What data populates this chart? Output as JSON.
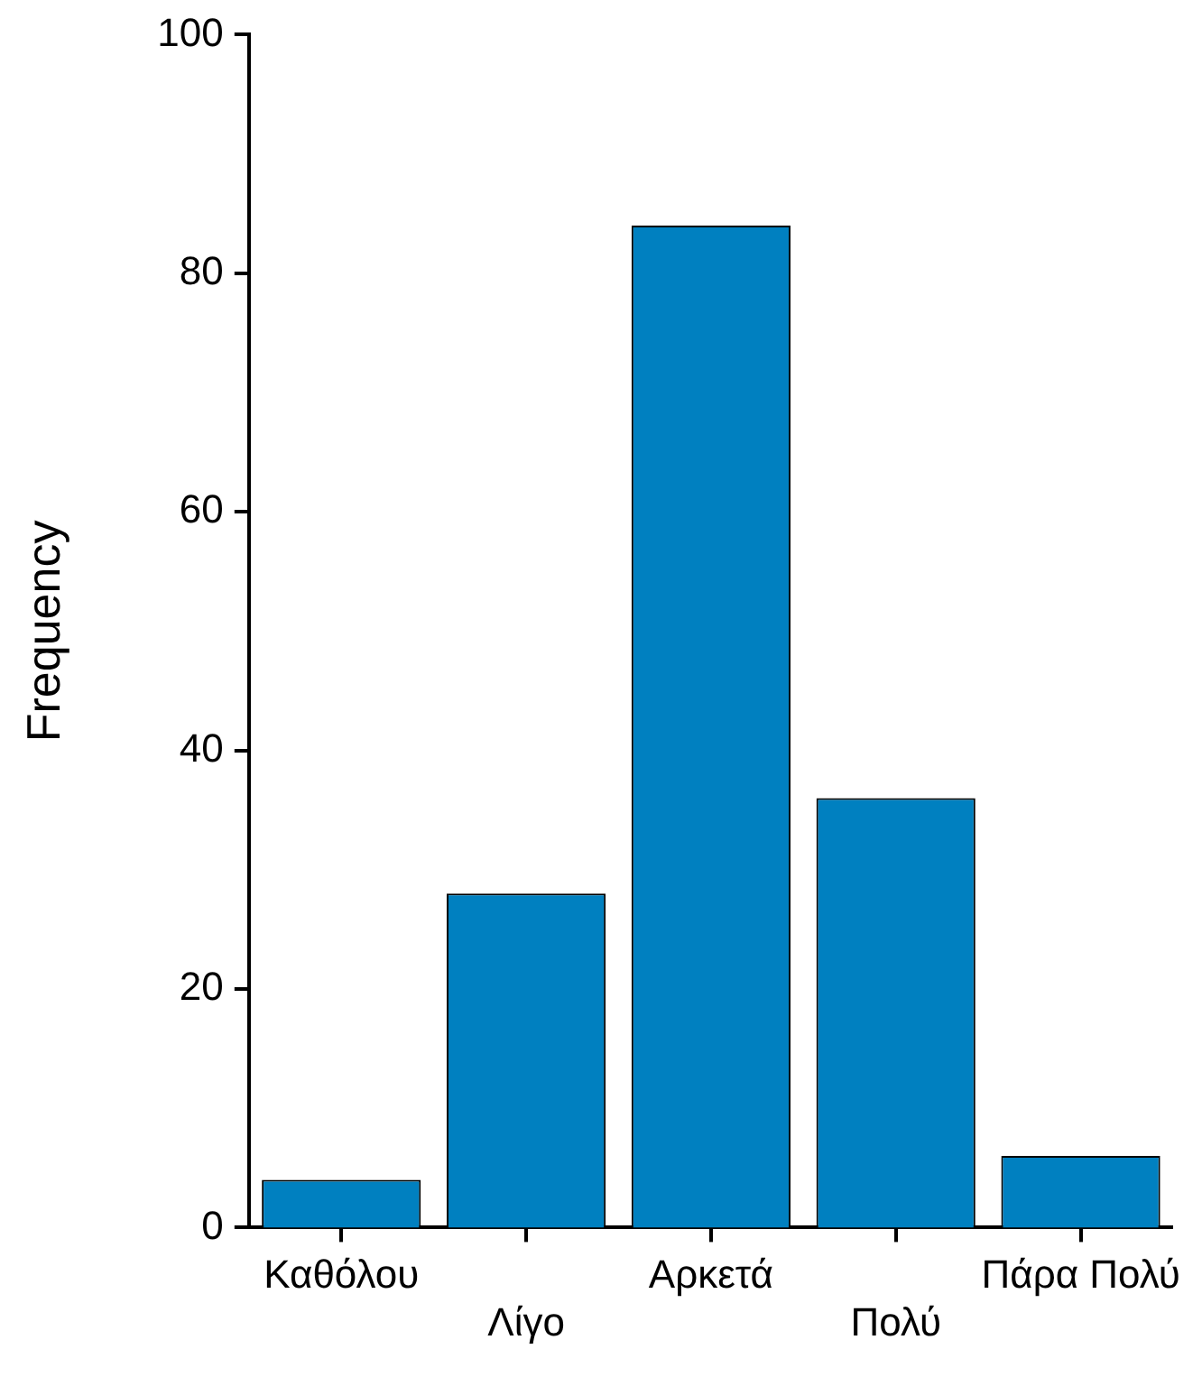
{
  "chart_data": {
    "type": "bar",
    "ylabel": "Frequency",
    "categories": [
      "Καθόλου",
      "Λίγο",
      "Αρκετά",
      "Πολύ",
      "Πάρα Πολύ"
    ],
    "values": [
      4,
      28,
      84,
      36,
      6
    ],
    "color": "#0080c0",
    "ylim": [
      0,
      100
    ],
    "yticks": [
      0,
      20,
      40,
      60,
      80,
      100
    ]
  }
}
